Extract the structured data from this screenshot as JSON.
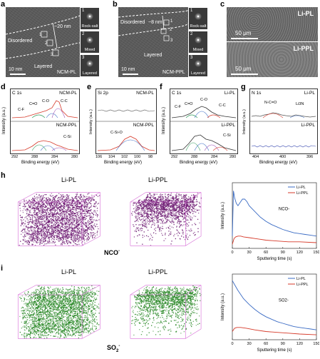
{
  "panel_labels": {
    "a": "a",
    "b": "b",
    "c": "c",
    "d": "d",
    "e": "e",
    "f": "f",
    "g": "g",
    "h": "h",
    "i": "i"
  },
  "em_a": {
    "top": "Disordered",
    "bottom": "Layered",
    "width": "~20 nm",
    "scale": "10 nm",
    "sample": "NCM-PL",
    "insets": [
      {
        "n": "1",
        "label": "Rock-salt"
      },
      {
        "n": "2",
        "label": "Mixed"
      },
      {
        "n": "3",
        "label": "Layered"
      }
    ],
    "markers": [
      "1",
      "2",
      "3"
    ]
  },
  "em_b": {
    "top": "Disordered",
    "bottom": "Layered",
    "width": "~8 nm",
    "scale": "10 nm",
    "sample": "NCM-PPL",
    "insets": [
      {
        "n": "1",
        "label": "Rock-salt"
      },
      {
        "n": "2",
        "label": "Mixed"
      },
      {
        "n": "3",
        "label": "Layered"
      }
    ],
    "markers": [
      "1",
      "2",
      "3"
    ]
  },
  "sem_c": {
    "top_label": "Li-PL",
    "bottom_label": "Li-PPL",
    "scale_top": "50 μm",
    "scale_bottom": "50 μm"
  },
  "xps": {
    "ylabel": "Intensity (a.u.)",
    "xlabel": "Binding energy (eV)",
    "d": {
      "title": "C 1s",
      "top": "NCM-PL",
      "bottom": "NCM-PPL",
      "ticks": [
        "292",
        "288",
        "284",
        "280"
      ],
      "peaks_top": [
        "C-F",
        "C=O",
        "C-O",
        "C-C"
      ],
      "peaks_bottom": [
        "C-Si"
      ]
    },
    "e": {
      "title": "Si 2p",
      "top": "NCM-PL",
      "bottom": "NCM-PPL",
      "ticks": [
        "106",
        "104",
        "102",
        "100",
        "98"
      ],
      "peaks_bottom": [
        "C-Si-O"
      ]
    },
    "f": {
      "title": "C 1s",
      "top": "Li-PL",
      "bottom": "Li-PPL",
      "ticks": [
        "292",
        "288",
        "284",
        "280"
      ],
      "peaks_top": [
        "C-F",
        "C=O",
        "C-O",
        "C-C"
      ],
      "peaks_bottom": [
        "C-Si"
      ]
    },
    "g": {
      "title": "N 1s",
      "top": "Li-PL",
      "bottom": "Li-PPL",
      "ticks": [
        "404",
        "400",
        "396"
      ],
      "peaks_top": [
        "N-C=O",
        "Li3N"
      ]
    }
  },
  "tof_h": {
    "left": "Li-PL",
    "right": "Li-PPL",
    "species": "NCO",
    "species_sup": "-",
    "color": "#6d1a72"
  },
  "tof_i": {
    "left": "Li-PL",
    "right": "Li-PPL",
    "species": "SO",
    "species_sub": "2",
    "species_sup": "-",
    "color": "#2d8a2a"
  },
  "chart_data": [
    {
      "type": "line",
      "ylabel": "Intensity (a.u.)",
      "xlabel": "Sputtering time (s)",
      "annotation": "NCO-",
      "xticks": [
        "0",
        "30",
        "60",
        "90",
        "120",
        "150"
      ],
      "xlim": [
        0,
        150
      ],
      "legend": [
        {
          "name": "Li-PL",
          "color": "#3a6bc4"
        },
        {
          "name": "Li-PPL",
          "color": "#d63a2a"
        }
      ],
      "series": [
        {
          "name": "Li-PL",
          "color": "#3a6bc4",
          "x": [
            0,
            2,
            4,
            7,
            10,
            14,
            18,
            22,
            26,
            30,
            40,
            50,
            60,
            70,
            80,
            90,
            100,
            110,
            120,
            130,
            140,
            150
          ],
          "y": [
            0.15,
            0.7,
            0.62,
            0.55,
            0.52,
            0.56,
            0.6,
            0.6,
            0.57,
            0.52,
            0.45,
            0.38,
            0.33,
            0.29,
            0.26,
            0.23,
            0.21,
            0.19,
            0.18,
            0.17,
            0.16,
            0.15
          ]
        },
        {
          "name": "Li-PPL",
          "color": "#d63a2a",
          "x": [
            0,
            3,
            6,
            10,
            15,
            20,
            30,
            40,
            50,
            60,
            80,
            100,
            120,
            150
          ],
          "y": [
            0.05,
            0.12,
            0.14,
            0.15,
            0.15,
            0.14,
            0.13,
            0.12,
            0.11,
            0.1,
            0.09,
            0.08,
            0.08,
            0.07
          ]
        }
      ]
    },
    {
      "type": "line",
      "ylabel": "Intensity (a.u.)",
      "xlabel": "Sputtering time (s)",
      "annotation": "SO2-",
      "xticks": [
        "0",
        "30",
        "60",
        "90",
        "120",
        "150"
      ],
      "xlim": [
        0,
        150
      ],
      "legend": [
        {
          "name": "Li-PL",
          "color": "#3a6bc4"
        },
        {
          "name": "Li-PPL",
          "color": "#d63a2a"
        }
      ],
      "series": [
        {
          "name": "Li-PL",
          "color": "#3a6bc4",
          "x": [
            0,
            5,
            10,
            15,
            20,
            30,
            40,
            50,
            60,
            70,
            80,
            90,
            100,
            110,
            120,
            130,
            140,
            150
          ],
          "y": [
            0.72,
            0.66,
            0.6,
            0.55,
            0.5,
            0.43,
            0.37,
            0.32,
            0.28,
            0.25,
            0.22,
            0.2,
            0.18,
            0.16,
            0.15,
            0.14,
            0.13,
            0.12
          ]
        },
        {
          "name": "Li-PPL",
          "color": "#d63a2a",
          "x": [
            0,
            4,
            8,
            15,
            25,
            40,
            60,
            80,
            100,
            120,
            150
          ],
          "y": [
            0.1,
            0.14,
            0.15,
            0.15,
            0.14,
            0.12,
            0.1,
            0.09,
            0.08,
            0.07,
            0.06
          ]
        }
      ]
    }
  ]
}
